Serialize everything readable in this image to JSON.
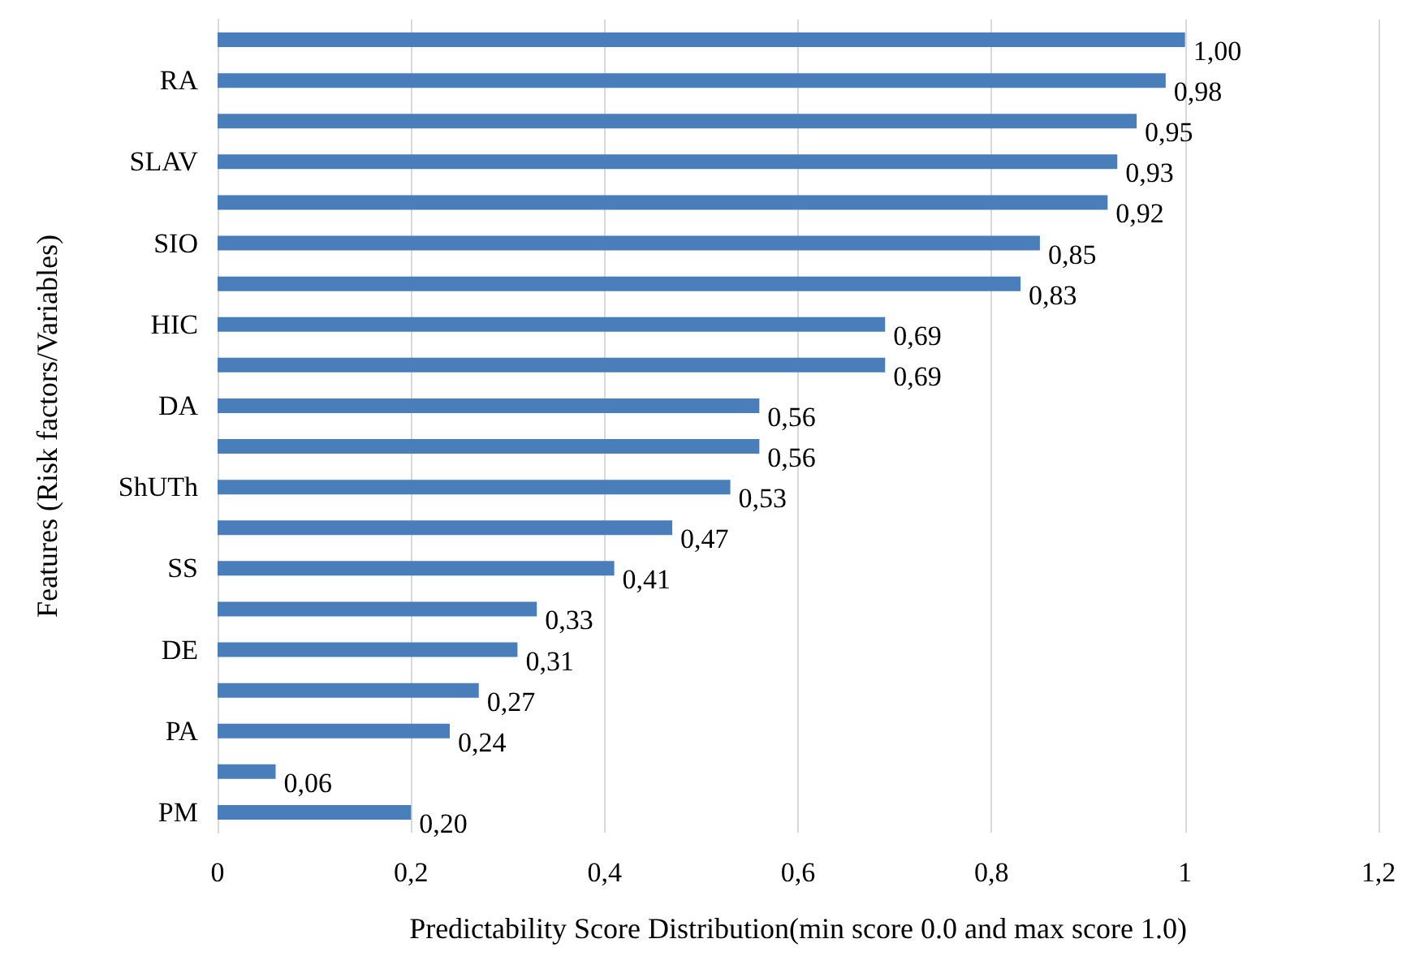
{
  "chart_data": {
    "type": "bar",
    "orientation": "horizontal",
    "xlabel": "Predictability Score Distribution(min score 0.0 and max score 1.0)",
    "ylabel": "Features (Risk factors/Variables)",
    "categories": [
      null,
      "RA",
      null,
      "SLAV",
      null,
      "SIO",
      null,
      "HIC",
      null,
      "DA",
      null,
      "ShUTh",
      null,
      "SS",
      null,
      "DE",
      null,
      "PA",
      null,
      "PM"
    ],
    "values": [
      1.0,
      0.98,
      0.95,
      0.93,
      0.92,
      0.85,
      0.83,
      0.69,
      0.69,
      0.56,
      0.56,
      0.53,
      0.47,
      0.41,
      0.33,
      0.31,
      0.27,
      0.24,
      0.06,
      0.2
    ],
    "value_labels": [
      "1,00",
      "0,98",
      "0,95",
      "0,93",
      "0,92",
      "0,85",
      "0,83",
      "0,69",
      "0,69",
      "0,56",
      "0,56",
      "0,53",
      "0,47",
      "0,41",
      "0,33",
      "0,31",
      "0,27",
      "0,24",
      "0,06",
      "0,20"
    ],
    "color": "#4a7ebb",
    "xlim": [
      0,
      1.2
    ],
    "xticks": [
      0,
      {
        "value": 0.2,
        "label": "0,2"
      },
      {
        "value": 0.4,
        "label": "0,4"
      },
      {
        "value": 0.6,
        "label": "0,6"
      },
      {
        "value": 0.8,
        "label": "0,8"
      },
      1,
      {
        "value": 1.2,
        "label": "1,2"
      }
    ],
    "grid": "x"
  }
}
